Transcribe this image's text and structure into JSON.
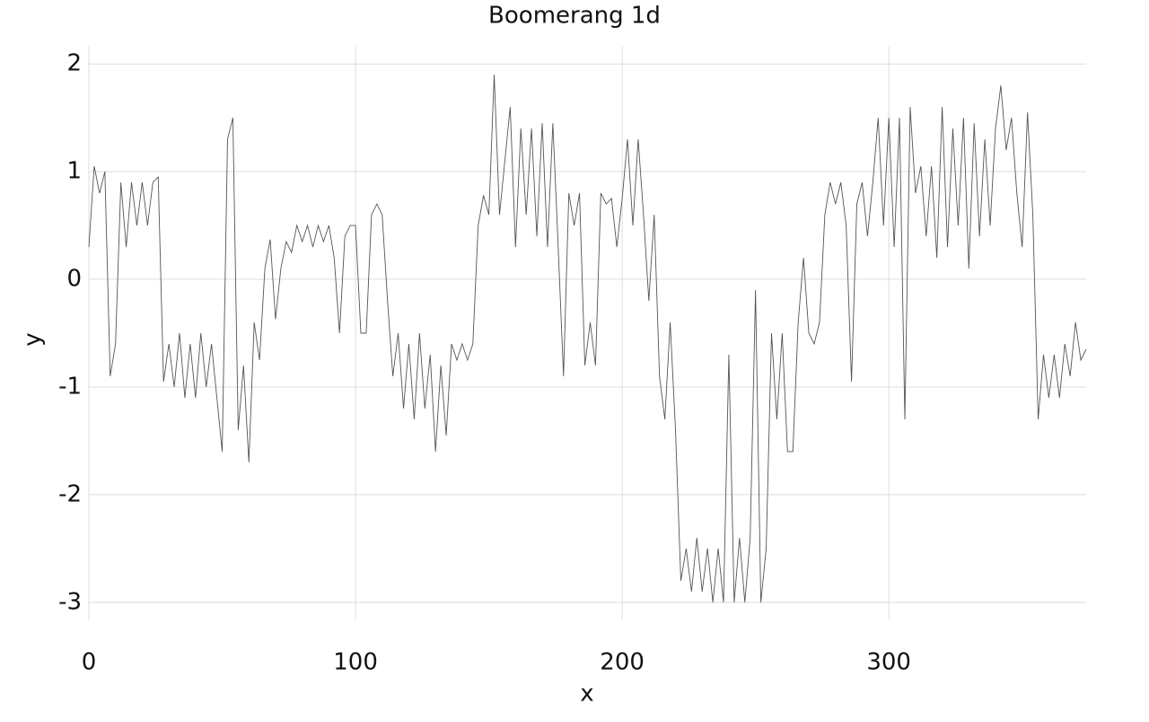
{
  "chart_data": {
    "type": "line",
    "title": "Boomerang 1d",
    "x_label": "x",
    "y_label": "y",
    "x": [
      0,
      2,
      4,
      6,
      8,
      10,
      12,
      14,
      16,
      18,
      20,
      22,
      24,
      26,
      28,
      30,
      32,
      34,
      36,
      38,
      40,
      42,
      44,
      46,
      48,
      50,
      52,
      54,
      56,
      58,
      60,
      62,
      64,
      66,
      68,
      70,
      72,
      74,
      76,
      78,
      80,
      82,
      84,
      86,
      88,
      90,
      92,
      94,
      96,
      98,
      100,
      102,
      104,
      106,
      108,
      110,
      112,
      114,
      116,
      118,
      120,
      122,
      124,
      126,
      128,
      130,
      132,
      134,
      136,
      138,
      140,
      142,
      144,
      146,
      148,
      150,
      152,
      154,
      156,
      158,
      160,
      162,
      164,
      166,
      168,
      170,
      172,
      174,
      176,
      178,
      180,
      182,
      184,
      186,
      188,
      190,
      192,
      194,
      196,
      198,
      200,
      202,
      204,
      206,
      208,
      210,
      212,
      214,
      216,
      218,
      220,
      222,
      224,
      226,
      228,
      230,
      232,
      234,
      236,
      238,
      240,
      242,
      244,
      246,
      248,
      250,
      252,
      254,
      256,
      258,
      260,
      262,
      264,
      266,
      268,
      270,
      272,
      274,
      276,
      278,
      280,
      282,
      284,
      286,
      288,
      290,
      292,
      294,
      296,
      298,
      300,
      302,
      304,
      306,
      308,
      310,
      312,
      314,
      316,
      318,
      320,
      322,
      324,
      326,
      328,
      330,
      332,
      334,
      336,
      338,
      340,
      342,
      344,
      346,
      348,
      350,
      352,
      354,
      356,
      358,
      360,
      362,
      364,
      366,
      368,
      370,
      372,
      374
    ],
    "series": [
      {
        "color": "#555555",
        "values": [
          0.3,
          1.05,
          0.8,
          1.0,
          -0.9,
          -0.6,
          0.9,
          0.3,
          0.9,
          0.5,
          0.9,
          0.5,
          0.9,
          0.95,
          -0.95,
          -0.6,
          -1.0,
          -0.5,
          -1.1,
          -0.6,
          -1.1,
          -0.5,
          -1.0,
          -0.6,
          -1.1,
          -1.6,
          1.3,
          1.5,
          -1.4,
          -0.8,
          -1.7,
          -0.4,
          -0.75,
          0.1,
          0.37,
          -0.37,
          0.1,
          0.35,
          0.25,
          0.5,
          0.35,
          0.5,
          0.3,
          0.5,
          0.35,
          0.5,
          0.2,
          -0.5,
          0.4,
          0.5,
          0.5,
          -0.5,
          -0.5,
          0.6,
          0.7,
          0.6,
          -0.2,
          -0.9,
          -0.5,
          -1.2,
          -0.6,
          -1.3,
          -0.5,
          -1.2,
          -0.7,
          -1.6,
          -0.8,
          -1.45,
          -0.6,
          -0.75,
          -0.6,
          -0.75,
          -0.6,
          0.5,
          0.78,
          0.6,
          1.9,
          0.6,
          1.1,
          1.6,
          0.3,
          1.4,
          0.6,
          1.4,
          0.4,
          1.45,
          0.3,
          1.45,
          0.3,
          -0.9,
          0.8,
          0.5,
          0.8,
          -0.8,
          -0.4,
          -0.8,
          0.8,
          0.7,
          0.75,
          0.3,
          0.75,
          1.3,
          0.5,
          1.3,
          0.6,
          -0.2,
          0.6,
          -0.9,
          -1.3,
          -0.4,
          -1.4,
          -2.8,
          -2.5,
          -2.9,
          -2.4,
          -2.9,
          -2.5,
          -3.0,
          -2.5,
          -3.0,
          -0.7,
          -3.0,
          -2.4,
          -3.0,
          -2.4,
          -0.1,
          -3.0,
          -2.5,
          -0.5,
          -1.3,
          -0.5,
          -1.6,
          -1.6,
          -0.4,
          0.2,
          -0.5,
          -0.6,
          -0.4,
          0.6,
          0.9,
          0.7,
          0.9,
          0.5,
          -0.95,
          0.7,
          0.9,
          0.4,
          0.9,
          1.5,
          0.5,
          1.5,
          0.3,
          1.5,
          -1.3,
          1.6,
          0.8,
          1.05,
          0.4,
          1.05,
          0.2,
          1.6,
          0.3,
          1.4,
          0.5,
          1.5,
          0.1,
          1.45,
          0.4,
          1.3,
          0.5,
          1.4,
          1.8,
          1.2,
          1.5,
          0.8,
          0.3,
          1.55,
          0.6,
          -1.3,
          -0.7,
          -1.1,
          -0.7,
          -1.1,
          -0.6,
          -0.9,
          -0.4,
          -0.75,
          -0.65
        ]
      }
    ],
    "xlim": [
      0,
      374
    ],
    "ylim": [
      -3.16,
      2.16
    ],
    "xticks": [
      0,
      100,
      200,
      300
    ],
    "yticks": [
      -3,
      -2,
      -1,
      0,
      1,
      2
    ],
    "grid": true
  }
}
